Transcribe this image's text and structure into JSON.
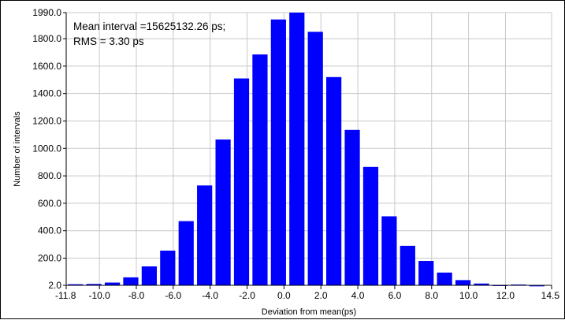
{
  "chart_data": {
    "type": "bar",
    "xlabel": "Deviation from mean(ps)",
    "ylabel": "Number of intervals",
    "annotation": [
      "Mean interval =15625132.26 ps;",
      "RMS = 3.30 ps"
    ],
    "ylim": [
      2.0,
      1990.0
    ],
    "xlim": [
      -11.8,
      14.5
    ],
    "bar_width": 0.82,
    "x_tick_labels": [
      "-11.8",
      "-10.0",
      "-8.0",
      "-6.0",
      "-4.0",
      "-2.0",
      "0.0",
      "2.0",
      "4.0",
      "6.0",
      "8.0",
      "10.0",
      "12.0",
      "14.5"
    ],
    "y_tick_labels": [
      "2.0",
      "200.0",
      "400.0",
      "600.0",
      "800.0",
      "1000.0",
      "1200.0",
      "1400.0",
      "1600.0",
      "1800.0",
      "1990.0"
    ],
    "grid": "vertical-and-horizontal",
    "color": "#0000ff",
    "x": [
      -11.3,
      -10.3,
      -9.3,
      -8.3,
      -7.3,
      -6.3,
      -5.3,
      -4.3,
      -3.3,
      -2.3,
      -1.3,
      -0.3,
      0.7,
      1.7,
      2.7,
      3.7,
      4.7,
      5.7,
      6.7,
      7.7,
      8.7,
      9.7,
      10.7,
      11.7,
      12.7,
      13.7
    ],
    "values": [
      10,
      12,
      22,
      60,
      140,
      255,
      470,
      730,
      1065,
      1510,
      1685,
      1940,
      1990,
      1850,
      1520,
      1135,
      865,
      505,
      290,
      180,
      95,
      40,
      15,
      5,
      8,
      3
    ]
  }
}
